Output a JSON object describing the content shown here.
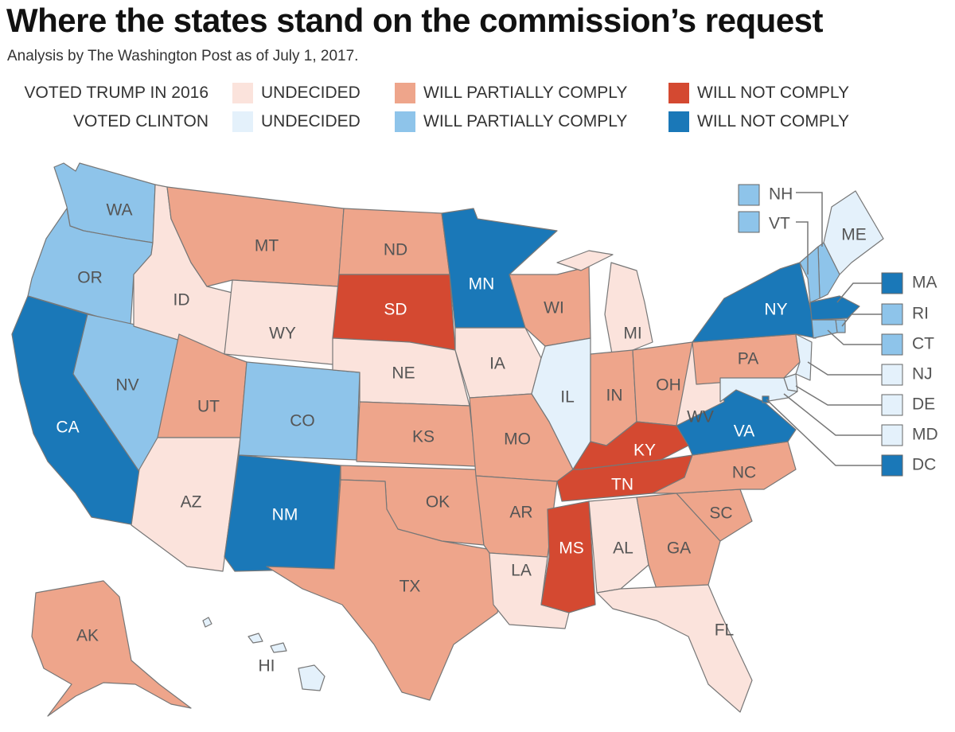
{
  "header": {
    "title": "Where the states stand on the commission’s request",
    "subtitle": "Analysis by The Washington Post as of July 1, 2017."
  },
  "legend": {
    "rows": [
      {
        "label": "VOTED TRUMP IN 2016",
        "items": [
          {
            "label": "UNDECIDED",
            "color": "#fbe3dc"
          },
          {
            "label": "WILL PARTIALLY COMPLY",
            "color": "#eea58b"
          },
          {
            "label": "WILL NOT COMPLY",
            "color": "#d44931"
          }
        ]
      },
      {
        "label": "VOTED CLINTON",
        "items": [
          {
            "label": "UNDECIDED",
            "color": "#e4f1fb"
          },
          {
            "label": "WILL PARTIALLY COMPLY",
            "color": "#8ec4ea"
          },
          {
            "label": "WILL NOT COMPLY",
            "color": "#1a78b8"
          }
        ]
      }
    ]
  },
  "colors": {
    "trump_undecided": "#fbe3dc",
    "trump_partial": "#eea58b",
    "trump_not": "#d44931",
    "clinton_undecided": "#e4f1fb",
    "clinton_partial": "#8ec4ea",
    "clinton_not": "#1a78b8",
    "border": "#777777",
    "label_dark": "#555555",
    "label_light": "#ffffff"
  },
  "states": [
    {
      "code": "WA",
      "vote": "clinton",
      "status": "partial"
    },
    {
      "code": "OR",
      "vote": "clinton",
      "status": "partial"
    },
    {
      "code": "CA",
      "vote": "clinton",
      "status": "not"
    },
    {
      "code": "NV",
      "vote": "clinton",
      "status": "partial"
    },
    {
      "code": "ID",
      "vote": "trump",
      "status": "undecided"
    },
    {
      "code": "MT",
      "vote": "trump",
      "status": "partial"
    },
    {
      "code": "WY",
      "vote": "trump",
      "status": "undecided"
    },
    {
      "code": "UT",
      "vote": "trump",
      "status": "partial"
    },
    {
      "code": "AZ",
      "vote": "trump",
      "status": "undecided"
    },
    {
      "code": "CO",
      "vote": "clinton",
      "status": "partial"
    },
    {
      "code": "NM",
      "vote": "clinton",
      "status": "not"
    },
    {
      "code": "ND",
      "vote": "trump",
      "status": "partial"
    },
    {
      "code": "SD",
      "vote": "trump",
      "status": "not"
    },
    {
      "code": "NE",
      "vote": "trump",
      "status": "undecided"
    },
    {
      "code": "KS",
      "vote": "trump",
      "status": "partial"
    },
    {
      "code": "OK",
      "vote": "trump",
      "status": "partial"
    },
    {
      "code": "TX",
      "vote": "trump",
      "status": "partial"
    },
    {
      "code": "MN",
      "vote": "clinton",
      "status": "not"
    },
    {
      "code": "IA",
      "vote": "trump",
      "status": "undecided"
    },
    {
      "code": "MO",
      "vote": "trump",
      "status": "partial"
    },
    {
      "code": "AR",
      "vote": "trump",
      "status": "partial"
    },
    {
      "code": "LA",
      "vote": "trump",
      "status": "undecided"
    },
    {
      "code": "WI",
      "vote": "trump",
      "status": "partial"
    },
    {
      "code": "IL",
      "vote": "clinton",
      "status": "undecided"
    },
    {
      "code": "MI",
      "vote": "trump",
      "status": "undecided"
    },
    {
      "code": "IN",
      "vote": "trump",
      "status": "partial"
    },
    {
      "code": "OH",
      "vote": "trump",
      "status": "partial"
    },
    {
      "code": "KY",
      "vote": "trump",
      "status": "not"
    },
    {
      "code": "TN",
      "vote": "trump",
      "status": "not"
    },
    {
      "code": "MS",
      "vote": "trump",
      "status": "not"
    },
    {
      "code": "AL",
      "vote": "trump",
      "status": "undecided"
    },
    {
      "code": "GA",
      "vote": "trump",
      "status": "partial"
    },
    {
      "code": "FL",
      "vote": "trump",
      "status": "undecided"
    },
    {
      "code": "SC",
      "vote": "trump",
      "status": "partial"
    },
    {
      "code": "NC",
      "vote": "trump",
      "status": "partial"
    },
    {
      "code": "VA",
      "vote": "clinton",
      "status": "not"
    },
    {
      "code": "WV",
      "vote": "trump",
      "status": "undecided"
    },
    {
      "code": "PA",
      "vote": "trump",
      "status": "partial"
    },
    {
      "code": "NY",
      "vote": "clinton",
      "status": "not"
    },
    {
      "code": "ME",
      "vote": "clinton",
      "status": "undecided"
    },
    {
      "code": "AK",
      "vote": "trump",
      "status": "partial"
    },
    {
      "code": "HI",
      "vote": "clinton",
      "status": "undecided"
    },
    {
      "code": "NH",
      "vote": "clinton",
      "status": "partial"
    },
    {
      "code": "VT",
      "vote": "clinton",
      "status": "partial"
    },
    {
      "code": "MA",
      "vote": "clinton",
      "status": "not"
    },
    {
      "code": "RI",
      "vote": "clinton",
      "status": "partial"
    },
    {
      "code": "CT",
      "vote": "clinton",
      "status": "partial"
    },
    {
      "code": "NJ",
      "vote": "clinton",
      "status": "undecided"
    },
    {
      "code": "DE",
      "vote": "clinton",
      "status": "undecided"
    },
    {
      "code": "MD",
      "vote": "clinton",
      "status": "undecided"
    },
    {
      "code": "DC",
      "vote": "clinton",
      "status": "not"
    }
  ]
}
